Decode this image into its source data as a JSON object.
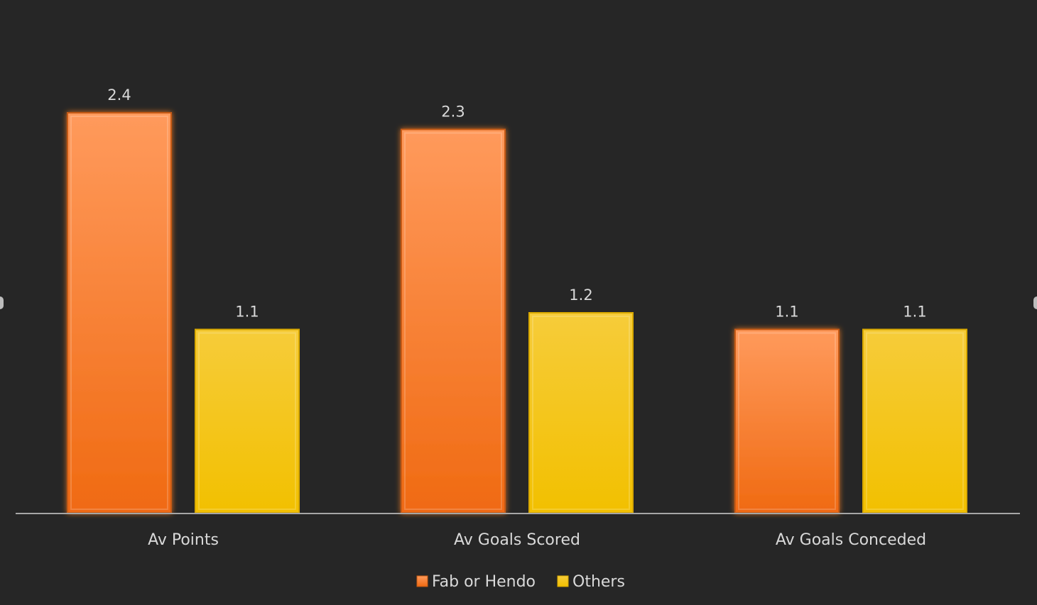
{
  "chart_data": {
    "type": "bar",
    "categories": [
      "Av Points",
      "Av Goals Scored",
      "Av Goals Conceded"
    ],
    "series": [
      {
        "name": "Fab or Hendo",
        "values": [
          2.4,
          2.3,
          1.1
        ],
        "color": "#F47B20"
      },
      {
        "name": "Others",
        "values": [
          1.1,
          1.2,
          1.1
        ],
        "color": "#F5C400"
      }
    ],
    "data_labels": [
      [
        "2.4",
        "2.3",
        "1.1"
      ],
      [
        "1.1",
        "1.2",
        "1.1"
      ]
    ],
    "ylim": [
      0,
      2.4
    ],
    "grid": false,
    "legend_position": "bottom-center",
    "background": "#262626",
    "text_color": "#d9d9d9"
  }
}
